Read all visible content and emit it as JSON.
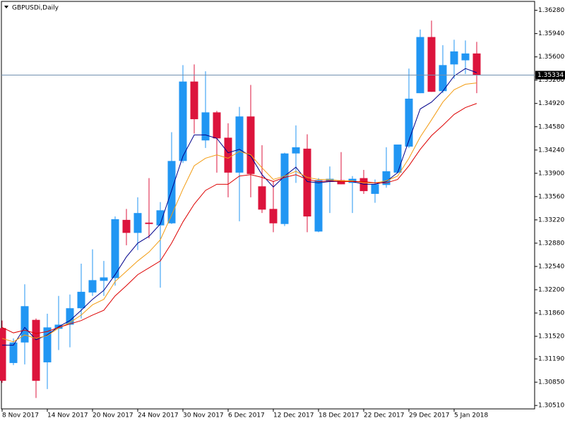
{
  "chart_data": {
    "type": "candlestick",
    "title": "GBPUSDi,Daily",
    "categories": [
      "8 Nov 2017",
      null,
      null,
      null,
      "14 Nov 2017",
      null,
      null,
      null,
      "20 Nov 2017",
      null,
      null,
      null,
      "24 Nov 2017",
      null,
      null,
      null,
      "30 Nov 2017",
      null,
      null,
      null,
      "6 Dec 2017",
      null,
      null,
      null,
      "12 Dec 2017",
      null,
      null,
      null,
      "18 Dec 2017",
      null,
      null,
      null,
      "22 Dec 2017",
      null,
      null,
      null,
      "29 Dec 2017",
      null,
      null,
      null,
      "5 Jan 2018",
      null,
      null
    ],
    "open": [
      1.3164,
      1.3113,
      1.3143,
      1.3176,
      1.3114,
      1.3163,
      1.3169,
      1.3193,
      1.3216,
      1.3233,
      1.3237,
      1.3322,
      1.3303,
      1.3318,
      1.3314,
      1.3317,
      1.3408,
      1.3524,
      1.3438,
      1.3479,
      1.3442,
      1.3391,
      1.3473,
      1.3371,
      1.3338,
      1.3316,
      1.3419,
      1.3426,
      1.3305,
      1.3378,
      1.338,
      1.3376,
      1.3383,
      1.336,
      1.3373,
      1.3391,
      1.3429,
      1.3507,
      1.3589,
      1.351,
      1.3549,
      1.3555,
      1.3565
    ],
    "high": [
      1.3175,
      1.3149,
      1.3228,
      1.3178,
      1.3185,
      1.3211,
      1.3213,
      1.3258,
      1.3279,
      1.3262,
      1.3327,
      1.3338,
      1.3355,
      1.3383,
      1.3348,
      1.345,
      1.3548,
      1.3549,
      1.3539,
      1.3481,
      1.3463,
      1.3487,
      1.3519,
      1.3431,
      1.3379,
      1.342,
      1.346,
      1.3447,
      1.3383,
      1.34,
      1.3421,
      1.3386,
      1.3395,
      1.3381,
      1.3428,
      1.3432,
      1.3543,
      1.36,
      1.3613,
      1.3577,
      1.3585,
      1.3584,
      1.3582
    ],
    "low": [
      1.3084,
      1.311,
      1.3111,
      1.3062,
      1.3075,
      1.3132,
      1.3136,
      1.3178,
      1.3211,
      1.3211,
      1.3226,
      1.3285,
      1.3278,
      1.3295,
      1.3223,
      1.3316,
      1.3405,
      1.3448,
      1.3427,
      1.3391,
      1.3355,
      1.332,
      1.3355,
      1.3332,
      1.3304,
      1.3313,
      1.3376,
      1.3304,
      1.3304,
      1.3332,
      1.3374,
      1.3332,
      1.336,
      1.3347,
      1.3369,
      1.339,
      1.3427,
      1.3507,
      1.3509,
      1.3507,
      1.3528,
      1.3535,
      1.3507
    ],
    "close": [
      1.3087,
      1.3143,
      1.3196,
      1.3087,
      1.3165,
      1.3169,
      1.3193,
      1.3217,
      1.3234,
      1.3238,
      1.3323,
      1.3303,
      1.3332,
      1.3316,
      1.3336,
      1.3408,
      1.3524,
      1.3469,
      1.3479,
      1.3441,
      1.3391,
      1.3473,
      1.3389,
      1.3337,
      1.3317,
      1.3419,
      1.3428,
      1.3327,
      1.338,
      1.3382,
      1.3374,
      1.3382,
      1.3364,
      1.3374,
      1.3393,
      1.3432,
      1.3499,
      1.3589,
      1.3509,
      1.3548,
      1.3568,
      1.3565,
      1.3533
    ],
    "up_color": "#2196f3",
    "down_color": "#dc143c",
    "series": [
      {
        "color": "#00008b",
        "values": [
          1.3139,
          1.3139,
          1.3165,
          1.3147,
          1.3154,
          1.3166,
          1.3175,
          1.319,
          1.3206,
          1.3219,
          1.3242,
          1.3268,
          1.3288,
          1.3298,
          1.3316,
          1.3365,
          1.3415,
          1.3446,
          1.3446,
          1.3441,
          1.342,
          1.3425,
          1.3415,
          1.3388,
          1.337,
          1.3386,
          1.3399,
          1.3378,
          1.3376,
          1.3378,
          1.3378,
          1.3378,
          1.3374,
          1.3374,
          1.3378,
          1.3391,
          1.3438,
          1.3484,
          1.3494,
          1.351,
          1.3532,
          1.3543,
          1.3537
        ]
      },
      {
        "color": "#f39c12",
        "values": [
          1.3149,
          1.3144,
          1.3154,
          1.3149,
          1.3153,
          1.3164,
          1.3172,
          1.3183,
          1.3198,
          1.3206,
          1.3232,
          1.3247,
          1.3262,
          1.3275,
          1.3293,
          1.3329,
          1.3367,
          1.3401,
          1.3412,
          1.3417,
          1.3412,
          1.3422,
          1.3417,
          1.3398,
          1.3381,
          1.3386,
          1.3393,
          1.3384,
          1.3381,
          1.3381,
          1.3379,
          1.3379,
          1.3376,
          1.3376,
          1.3379,
          1.3386,
          1.3412,
          1.3443,
          1.3468,
          1.3494,
          1.3512,
          1.352,
          1.3522
        ]
      },
      {
        "color": "#dd0000",
        "values": [
          1.3165,
          1.3157,
          1.3161,
          1.3156,
          1.3159,
          1.3165,
          1.317,
          1.3175,
          1.3183,
          1.319,
          1.3211,
          1.3226,
          1.3242,
          1.3252,
          1.3262,
          1.3288,
          1.3319,
          1.3345,
          1.3365,
          1.3374,
          1.3374,
          1.3386,
          1.3388,
          1.3384,
          1.3378,
          1.3384,
          1.3388,
          1.3381,
          1.3378,
          1.3379,
          1.3378,
          1.3378,
          1.3378,
          1.3376,
          1.3376,
          1.3381,
          1.3401,
          1.3425,
          1.3445,
          1.346,
          1.3476,
          1.3486,
          1.3492
        ]
      }
    ],
    "last_price": 1.35334,
    "last_price_color": "#7090b0",
    "ylim": [
      1.3046,
      1.3641
    ],
    "yticks": [
      {
        "value": 1.3628,
        "label": "1.36280"
      },
      {
        "value": 1.3594,
        "label": "1.35940"
      },
      {
        "value": 1.356,
        "label": "1.35600"
      },
      {
        "value": 1.3526,
        "label": "1.35260"
      },
      {
        "value": 1.3492,
        "label": "1.34920"
      },
      {
        "value": 1.3458,
        "label": "1.34580"
      },
      {
        "value": 1.3424,
        "label": "1.34240"
      },
      {
        "value": 1.339,
        "label": "1.33900"
      },
      {
        "value": 1.3356,
        "label": "1.33560"
      },
      {
        "value": 1.3322,
        "label": "1.33220"
      },
      {
        "value": 1.3288,
        "label": "1.32880"
      },
      {
        "value": 1.3254,
        "label": "1.32540"
      },
      {
        "value": 1.322,
        "label": "1.32200"
      },
      {
        "value": 1.3186,
        "label": "1.31860"
      },
      {
        "value": 1.3152,
        "label": "1.31520"
      },
      {
        "value": 1.3119,
        "label": "1.31190"
      },
      {
        "value": 1.3085,
        "label": "1.30850"
      },
      {
        "value": 1.3051,
        "label": "1.30510"
      }
    ]
  }
}
